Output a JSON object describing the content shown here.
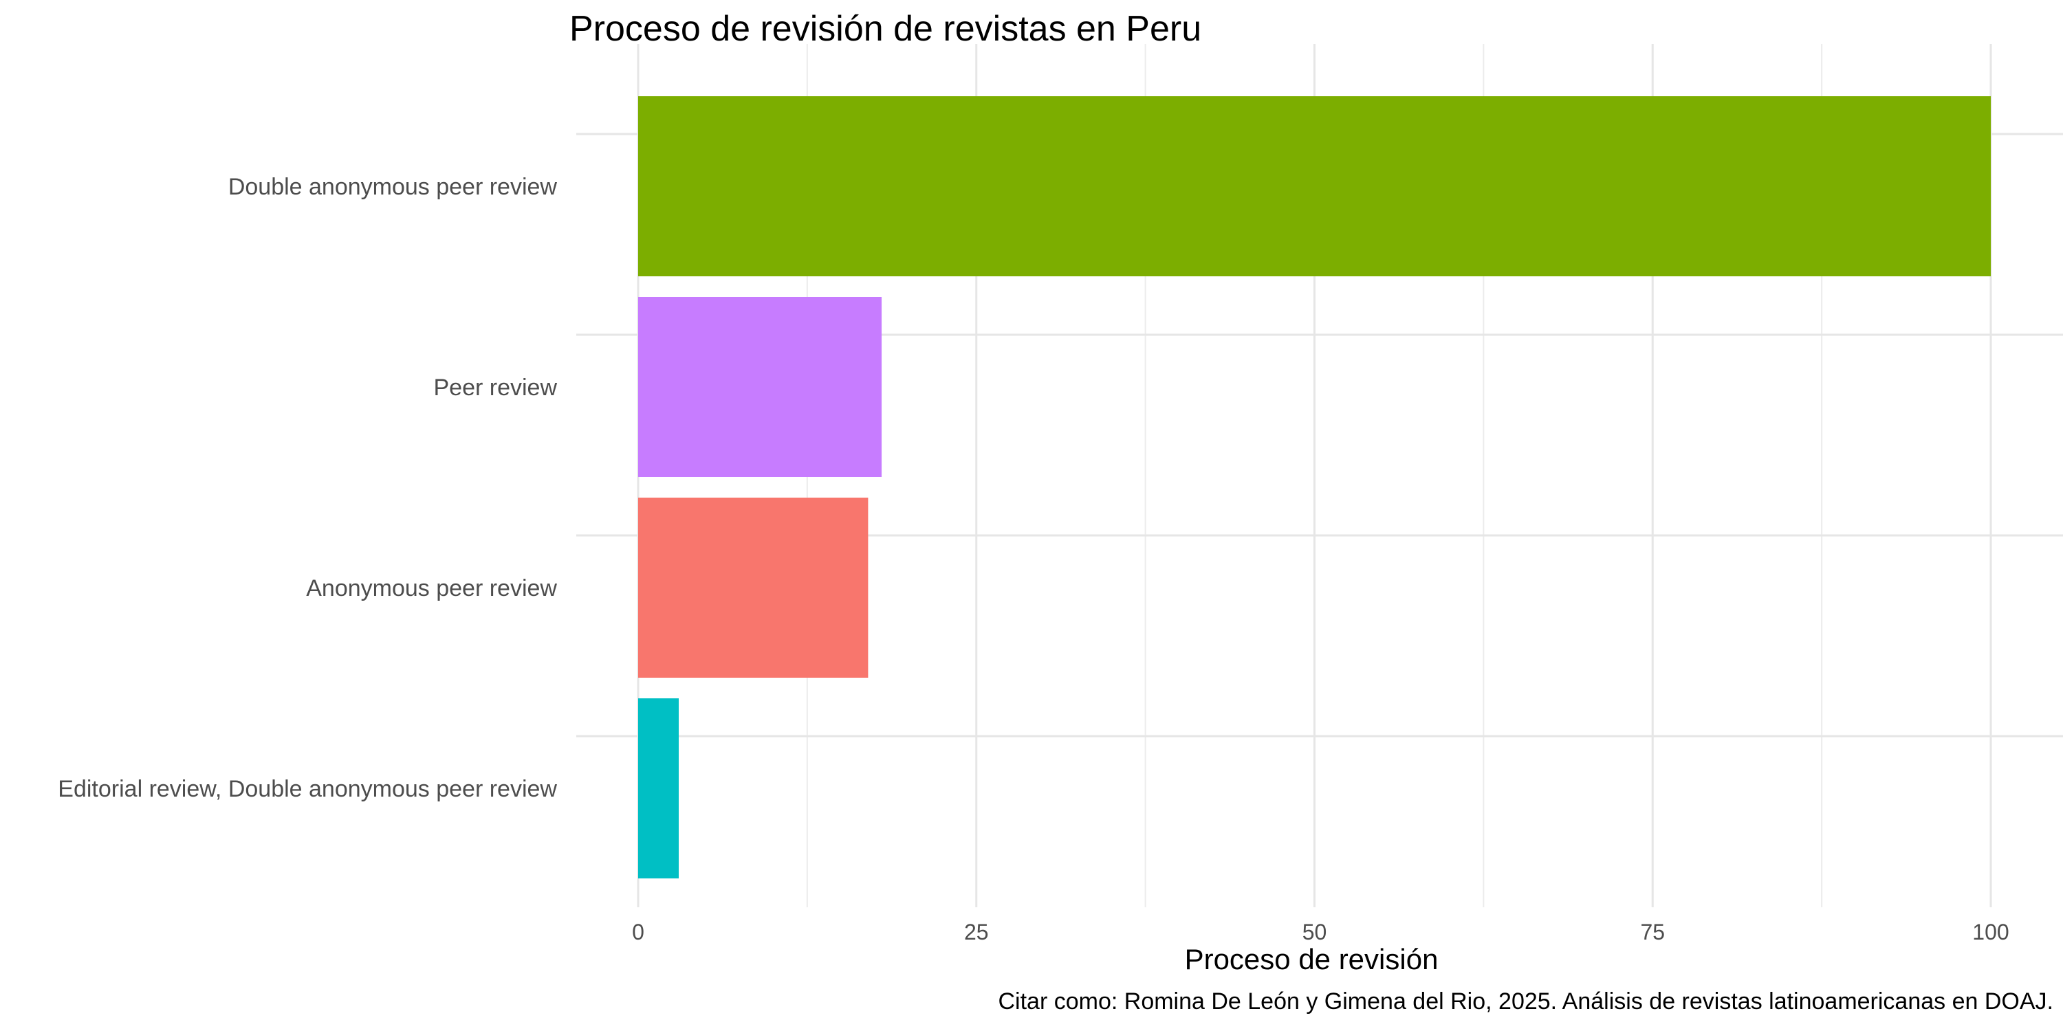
{
  "chart_data": {
    "type": "bar",
    "orientation": "horizontal",
    "title": "Proceso de revisión de revistas en Peru",
    "xlabel": "Proceso de revisión",
    "ylabel": "",
    "caption": "Citar como: Romina De León y Gimena del Rio, 2025. Análisis de revistas latinoamericanas en DOAJ.",
    "categories": [
      "Double anonymous peer review",
      "Peer review",
      "Anonymous peer review",
      "Editorial review, Double anonymous peer review"
    ],
    "values": [
      100,
      18,
      17,
      3
    ],
    "colors": [
      "#7CAE00",
      "#C77CFF",
      "#F8766D",
      "#00BFC4"
    ],
    "xlim": [
      0,
      100
    ],
    "xticks": [
      0,
      25,
      50,
      75,
      100
    ],
    "grid": true,
    "legend": "none"
  }
}
